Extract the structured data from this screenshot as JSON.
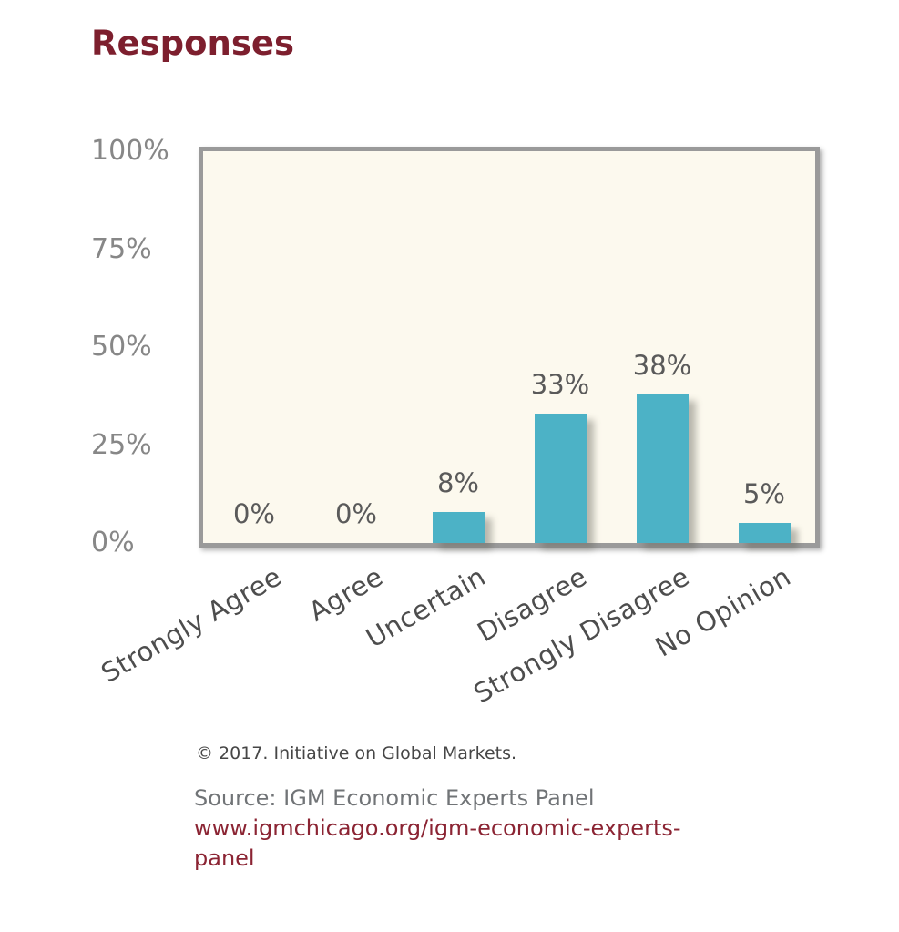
{
  "page": {
    "title": "Responses",
    "background": "#ffffff"
  },
  "chart_data": {
    "type": "bar",
    "title": "Responses",
    "categories": [
      "Strongly Agree",
      "Agree",
      "Uncertain",
      "Disagree",
      "Strongly Disagree",
      "No Opinion"
    ],
    "values": [
      0,
      0,
      8,
      33,
      38,
      5
    ],
    "value_labels": [
      "0%",
      "0%",
      "8%",
      "33%",
      "38%",
      "5%"
    ],
    "xlabel": "",
    "ylabel": "",
    "ylim": [
      0,
      100
    ],
    "yticks": [
      "0%",
      "25%",
      "50%",
      "75%",
      "100%"
    ],
    "grid": false,
    "legend": "none",
    "category_label_rotation_deg": -30,
    "bar_color": "#4cb2c6",
    "plot_background": "#fcf9ee",
    "plot_border_color": "#9a9a9a"
  },
  "footer": {
    "copyright": "© 2017. Initiative on Global Markets.",
    "source": "Source: IGM Economic Experts Panel",
    "link": "www.igmchicago.org/igm-economic-experts-panel"
  },
  "colors": {
    "title": "#7d1f2e",
    "link": "#8b2433",
    "axis_tick_labels": "#878787",
    "value_labels": "#5a5a5a",
    "category_labels": "#4d4d4d",
    "copyright": "#464646",
    "source": "#717477"
  }
}
